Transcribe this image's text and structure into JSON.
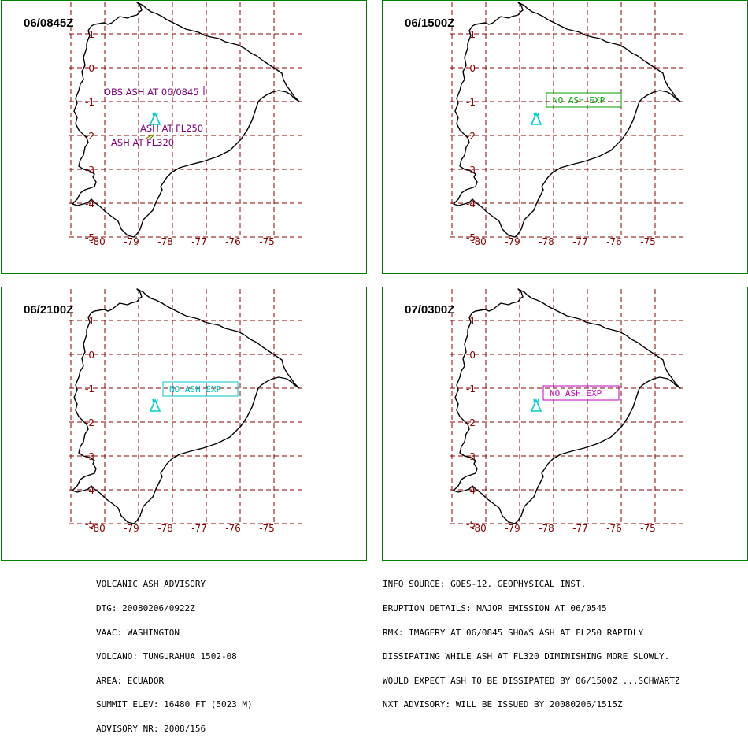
{
  "colors": {
    "border": "#008000",
    "grid": "#8b0000",
    "coast": "#000000",
    "volcano": "#00d0d0",
    "ash_text": "#800080",
    "ash_line": "#808000",
    "box_green": "#00a000",
    "box_cyan": "#00c8c8",
    "box_magenta": "#c000c0"
  },
  "grid_labels": {
    "lat": [
      "1",
      "0",
      "-1",
      "-2",
      "-3",
      "-4",
      "-5"
    ],
    "lon": [
      "-80",
      "-79",
      "-78",
      "-77",
      "-76",
      "-75"
    ]
  },
  "panels": [
    {
      "title": "06/0845Z",
      "labels": [
        "OBS ASH AT 06/0845",
        "ASH AT FL250",
        "ASH AT FL320"
      ],
      "volcano_icon": "volcano-triangle-icon"
    },
    {
      "title": "06/1500Z",
      "labels": [
        "NO ASH EXP"
      ],
      "volcano_icon": "volcano-triangle-icon"
    },
    {
      "title": "06/2100Z",
      "labels": [
        "NO ASH EXP"
      ],
      "volcano_icon": "volcano-triangle-icon"
    },
    {
      "title": "07/0300Z",
      "labels": [
        "NO ASH EXP"
      ],
      "volcano_icon": "volcano-triangle-icon"
    }
  ],
  "advisory_left": [
    "VOLCANIC ASH ADVISORY",
    "DTG: 20080206/0922Z",
    "VAAC: WASHINGTON",
    "VOLCANO: TUNGURAHUA 1502-08",
    "AREA: ECUADOR",
    "SUMMIT ELEV: 16480 FT (5023 M)",
    "ADVISORY NR: 2008/156"
  ],
  "advisory_right": [
    "INFO SOURCE: GOES-12. GEOPHYSICAL INST.",
    "ERUPTION DETAILS: MAJOR EMISSION AT 06/0545",
    "RMK: IMAGERY AT 06/0845 SHOWS ASH AT FL250 RAPIDLY",
    "DISSIPATING WHILE ASH AT FL320 DIMINISHING MORE SLOWLY.",
    "WOULD EXPECT ASH TO BE DISSIPATED BY 06/1500Z ...SCHWARTZ",
    "NXT ADVISORY: WILL BE ISSUED BY 20080206/1515Z"
  ]
}
